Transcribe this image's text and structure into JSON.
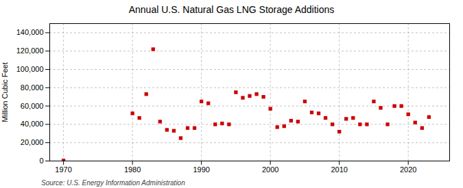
{
  "chart_data": {
    "type": "scatter",
    "title": "Annual U.S. Natural Gas LNG Storage Additions",
    "ylabel": "Million Cubic Feet",
    "source": "Source: U.S. Energy Information Administration",
    "color": "#cc0000",
    "marker": "square",
    "x": [
      1970,
      1980,
      1981,
      1982,
      1983,
      1984,
      1985,
      1986,
      1987,
      1988,
      1989,
      1990,
      1991,
      1992,
      1993,
      1994,
      1995,
      1996,
      1997,
      1998,
      1999,
      2000,
      2001,
      2002,
      2003,
      2004,
      2005,
      2006,
      2007,
      2008,
      2009,
      2010,
      2011,
      2012,
      2013,
      2014,
      2015,
      2016,
      2017,
      2018,
      2019,
      2020,
      2021,
      2022,
      2023
    ],
    "values": [
      500,
      52000,
      47000,
      73000,
      122000,
      43000,
      34000,
      33000,
      25000,
      36000,
      36000,
      65000,
      63000,
      40000,
      41000,
      40000,
      75000,
      69000,
      71000,
      73000,
      70000,
      57000,
      37000,
      38000,
      44000,
      43000,
      65000,
      53000,
      52000,
      47000,
      40000,
      32000,
      46000,
      47000,
      40000,
      40000,
      65000,
      58000,
      40000,
      60000,
      60000,
      51000,
      42000,
      36000,
      48000
    ],
    "xlim": [
      1968,
      2026
    ],
    "xticks": [
      1970,
      1980,
      1990,
      2000,
      2010,
      2020
    ],
    "ylim": [
      0,
      150000
    ],
    "yticks": [
      0,
      {
        "value": 20000,
        "label": "20,000"
      },
      {
        "value": 40000,
        "label": "40,000"
      },
      {
        "value": 60000,
        "label": "60,000"
      },
      {
        "value": 80000,
        "label": "80,000"
      },
      {
        "value": 100000,
        "label": "100,000"
      },
      {
        "value": 120000,
        "label": "120,000"
      },
      {
        "value": 140000,
        "label": "140,000"
      }
    ],
    "grid": true
  }
}
